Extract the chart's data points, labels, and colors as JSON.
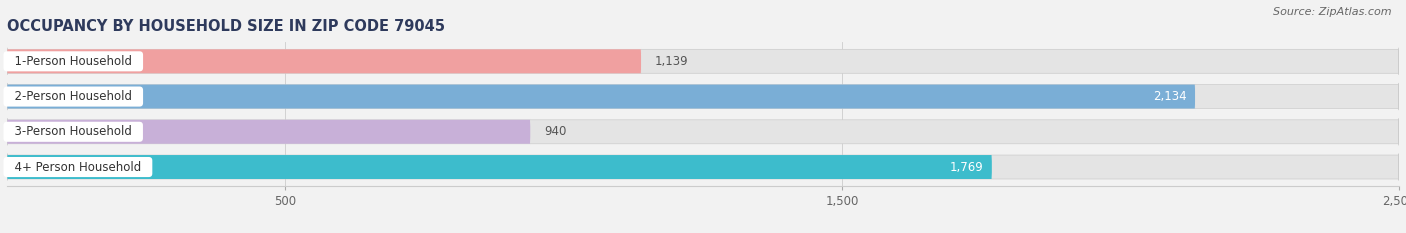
{
  "title": "OCCUPANCY BY HOUSEHOLD SIZE IN ZIP CODE 79045",
  "source": "Source: ZipAtlas.com",
  "categories": [
    "1-Person Household",
    "2-Person Household",
    "3-Person Household",
    "4+ Person Household"
  ],
  "values": [
    1139,
    2134,
    940,
    1769
  ],
  "bar_colors": [
    "#f0a0a0",
    "#7aaed6",
    "#c8b0d8",
    "#3dbccc"
  ],
  "value_label_colors": [
    "#666666",
    "#ffffff",
    "#666666",
    "#ffffff"
  ],
  "xlim_max": 2500,
  "xticks": [
    500,
    1500,
    2500
  ],
  "title_color": "#2e3a5c",
  "title_fontsize": 10.5,
  "source_fontsize": 8,
  "bar_label_fontsize": 8.5,
  "cat_label_fontsize": 8.5,
  "background_color": "#f2f2f2",
  "bar_background_color": "#e4e4e4",
  "bar_height": 0.68,
  "bar_spacing": 1.0
}
